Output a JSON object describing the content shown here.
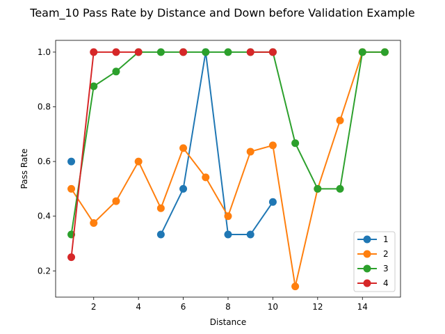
{
  "chart_data": {
    "type": "line",
    "title": "Team_10 Pass Rate by Distance and Down before Validation Example",
    "xlabel": "Distance",
    "ylabel": "Pass Rate",
    "xlim": [
      0.3,
      15.7
    ],
    "ylim": [
      0.104,
      1.043
    ],
    "xticks": [
      2,
      4,
      6,
      8,
      10,
      12,
      14
    ],
    "yticks": [
      0.2,
      0.4,
      0.6,
      0.8,
      1.0
    ],
    "ytick_labels": [
      "0.2",
      "0.4",
      "0.6",
      "0.8",
      "1.0"
    ],
    "grid": false,
    "legend_position": "lower-right",
    "series": [
      {
        "name": "1",
        "color": "#1f77b4",
        "segments": [
          [
            [
              1,
              0.6
            ]
          ],
          [
            [
              5,
              0.333
            ],
            [
              6,
              0.5
            ],
            [
              7,
              1.0
            ],
            [
              8,
              0.333
            ],
            [
              9,
              0.333
            ],
            [
              10,
              0.452
            ]
          ]
        ]
      },
      {
        "name": "2",
        "color": "#ff7f0e",
        "segments": [
          [
            [
              1,
              0.5
            ],
            [
              2,
              0.375
            ],
            [
              3,
              0.455
            ],
            [
              4,
              0.6
            ],
            [
              5,
              0.429
            ],
            [
              6,
              0.649
            ],
            [
              7,
              0.542
            ],
            [
              8,
              0.4
            ],
            [
              9,
              0.636
            ],
            [
              10,
              0.659
            ],
            [
              11,
              0.143
            ],
            [
              12,
              0.5
            ],
            [
              13,
              0.75
            ],
            [
              14,
              1.0
            ],
            [
              15,
              1.0
            ]
          ]
        ]
      },
      {
        "name": "3",
        "color": "#2ca02c",
        "segments": [
          [
            [
              1,
              0.333
            ],
            [
              2,
              0.875
            ],
            [
              3,
              0.929
            ],
            [
              4,
              1.0
            ],
            [
              5,
              1.0
            ],
            [
              6,
              1.0
            ],
            [
              7,
              1.0
            ],
            [
              8,
              1.0
            ],
            [
              9,
              1.0
            ],
            [
              10,
              1.0
            ],
            [
              11,
              0.667
            ],
            [
              12,
              0.5
            ],
            [
              13,
              0.5
            ],
            [
              14,
              1.0
            ],
            [
              15,
              1.0
            ]
          ]
        ]
      },
      {
        "name": "4",
        "color": "#d62728",
        "segments": [
          [
            [
              1,
              0.25
            ],
            [
              2,
              1.0
            ],
            [
              3,
              1.0
            ],
            [
              4,
              1.0
            ]
          ],
          [
            [
              6,
              1.0
            ]
          ],
          [
            [
              9,
              1.0
            ],
            [
              10,
              1.0
            ]
          ]
        ]
      }
    ]
  }
}
